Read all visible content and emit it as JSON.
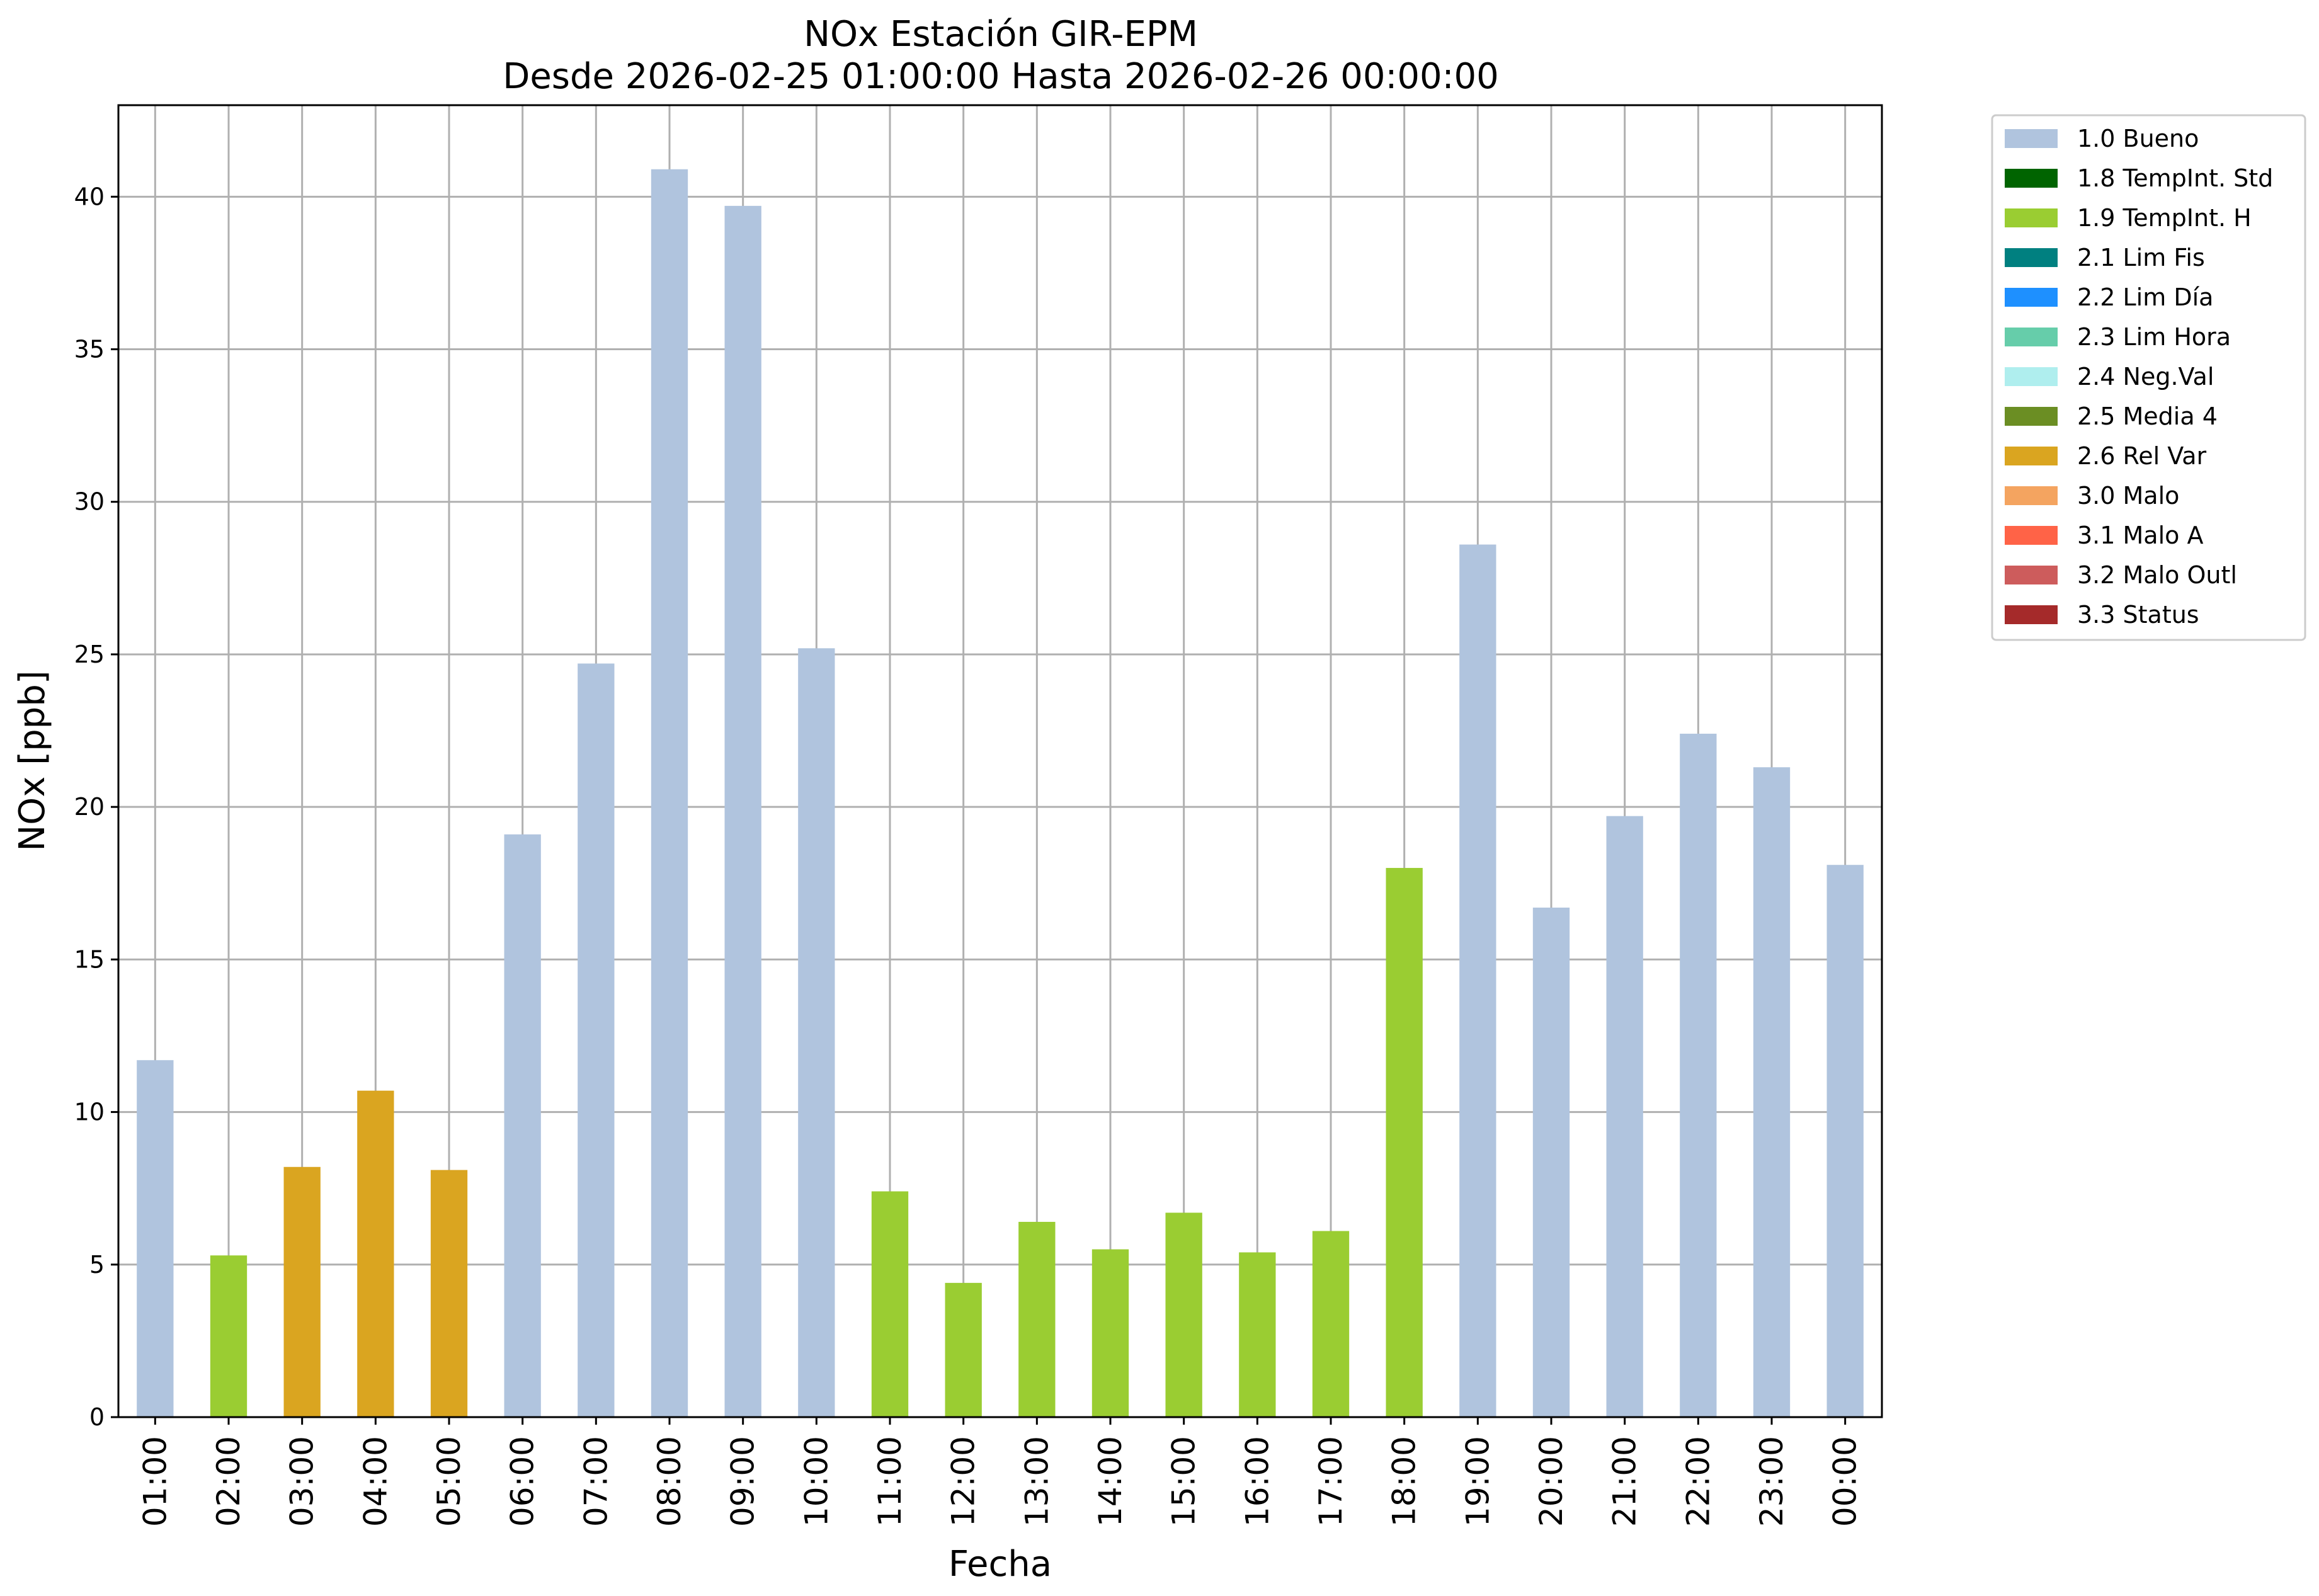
{
  "chart_data": {
    "type": "bar",
    "title": "NOx Estación GIR-EPM",
    "subtitle": "Desde 2026-02-25 01:00:00 Hasta 2026-02-26 00:00:00",
    "xlabel": "Fecha",
    "ylabel": "NOx [ppb]",
    "ylim": [
      0,
      43
    ],
    "yticks": [
      0,
      5,
      10,
      15,
      20,
      25,
      30,
      35,
      40
    ],
    "grid": true,
    "legend_position": "outside-top-right",
    "categories": [
      "01:00",
      "02:00",
      "03:00",
      "04:00",
      "05:00",
      "06:00",
      "07:00",
      "08:00",
      "09:00",
      "10:00",
      "11:00",
      "12:00",
      "13:00",
      "14:00",
      "15:00",
      "16:00",
      "17:00",
      "18:00",
      "19:00",
      "20:00",
      "21:00",
      "22:00",
      "23:00",
      "00:00"
    ],
    "values": [
      11.7,
      5.3,
      8.2,
      10.7,
      8.1,
      19.1,
      24.7,
      40.9,
      39.7,
      25.2,
      7.4,
      4.4,
      6.4,
      5.5,
      6.7,
      5.4,
      6.1,
      18.0,
      28.6,
      16.7,
      19.7,
      22.4,
      21.3,
      18.1
    ],
    "flags": [
      "1.0",
      "1.9",
      "2.6",
      "2.6",
      "2.6",
      "1.0",
      "1.0",
      "1.0",
      "1.0",
      "1.0",
      "1.9",
      "1.9",
      "1.9",
      "1.9",
      "1.9",
      "1.9",
      "1.9",
      "1.9",
      "1.0",
      "1.0",
      "1.0",
      "1.0",
      "1.0",
      "1.0"
    ],
    "legend": [
      {
        "code": "1.0",
        "label": "1.0 Bueno",
        "color": "#b0c4de"
      },
      {
        "code": "1.8",
        "label": "1.8 TempInt. Std",
        "color": "#006400"
      },
      {
        "code": "1.9",
        "label": "1.9 TempInt. H",
        "color": "#9acd32"
      },
      {
        "code": "2.1",
        "label": "2.1 Lim Fis",
        "color": "#008080"
      },
      {
        "code": "2.2",
        "label": "2.2 Lim Día",
        "color": "#1e90ff"
      },
      {
        "code": "2.3",
        "label": "2.3 Lim Hora",
        "color": "#66cdaa"
      },
      {
        "code": "2.4",
        "label": "2.4 Neg.Val",
        "color": "#afeeee"
      },
      {
        "code": "2.5",
        "label": "2.5 Media 4",
        "color": "#6b8e23"
      },
      {
        "code": "2.6",
        "label": "2.6 Rel Var",
        "color": "#daa520"
      },
      {
        "code": "3.0",
        "label": "3.0 Malo",
        "color": "#f4a460"
      },
      {
        "code": "3.1",
        "label": "3.1 Malo A",
        "color": "#ff6347"
      },
      {
        "code": "3.2",
        "label": "3.2 Malo Outl",
        "color": "#cd5c5c"
      },
      {
        "code": "3.3",
        "label": "3.3 Status",
        "color": "#a52a2a"
      }
    ]
  }
}
